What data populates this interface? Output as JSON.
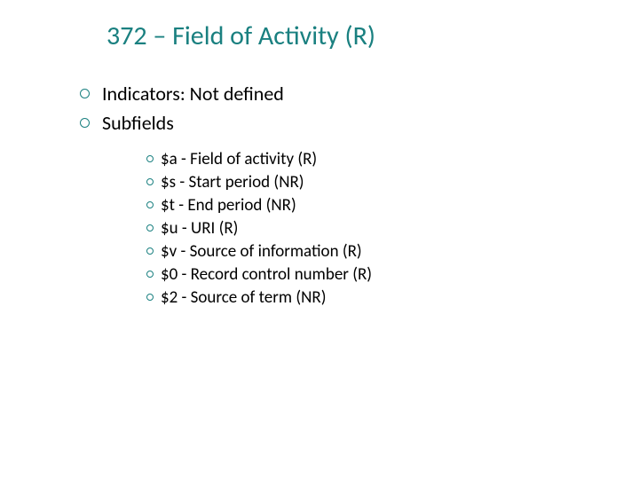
{
  "title": "372 – Field of Activity (R)",
  "mainItems": [
    {
      "text": "Indicators: Not defined"
    },
    {
      "text": "Subfields"
    }
  ],
  "subItems": [
    {
      "text": "$a - Field of activity (R)"
    },
    {
      "text": "$s - Start period (NR)"
    },
    {
      "text": "$t - End period (NR)"
    },
    {
      "text": "$u - URI (R)"
    },
    {
      "text": "$v - Source of information (R)"
    },
    {
      "text": "$0 - Record control number (R)"
    },
    {
      "text": "$2 - Source of term (NR)"
    }
  ],
  "colors": {
    "title": "#1a8080",
    "bullet": "#1a8080",
    "text": "#000000",
    "background": "#ffffff"
  },
  "typography": {
    "titleFontSize": 30,
    "mainFontSize": 22,
    "subFontSize": 19,
    "fontFamily": "Calibri"
  }
}
